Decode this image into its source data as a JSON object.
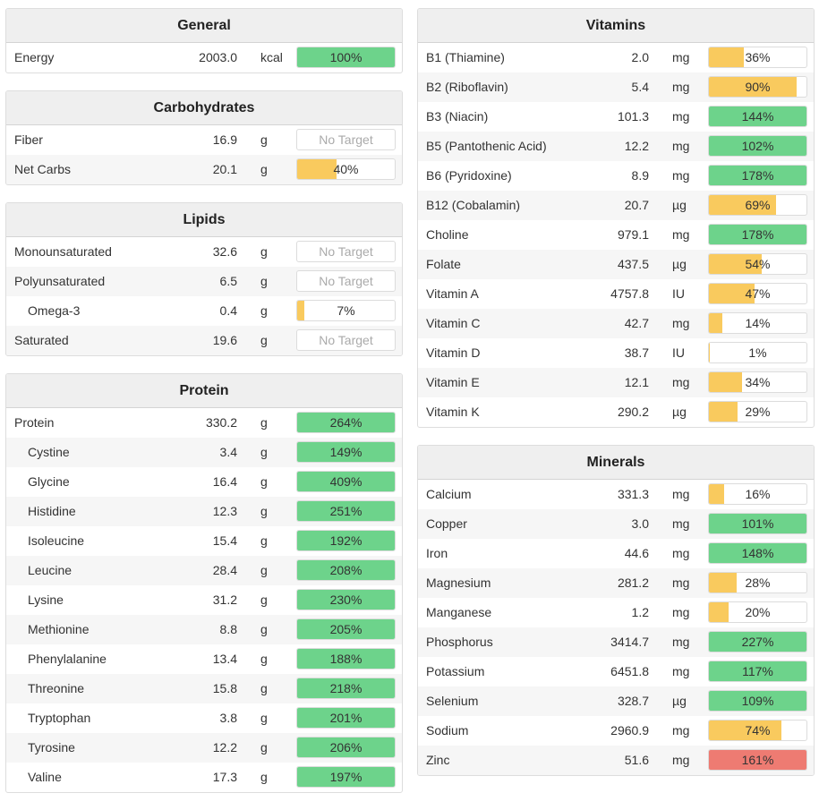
{
  "colors": {
    "green": "#6dd38b",
    "yellow": "#f9ca5e",
    "red": "#ee7b72"
  },
  "left_panels": [
    {
      "title": "General",
      "rows": [
        {
          "name": "Energy",
          "amount": "2003.0",
          "unit": "kcal",
          "percent": "100%",
          "fill": 1.0,
          "status": "green"
        }
      ]
    },
    {
      "title": "Carbohydrates",
      "rows": [
        {
          "name": "Fiber",
          "amount": "16.9",
          "unit": "g",
          "percent": "No Target",
          "fill": 0,
          "status": "none"
        },
        {
          "name": "Net Carbs",
          "amount": "20.1",
          "unit": "g",
          "percent": "40%",
          "fill": 0.4,
          "status": "yellow"
        }
      ]
    },
    {
      "title": "Lipids",
      "rows": [
        {
          "name": "Monounsaturated",
          "amount": "32.6",
          "unit": "g",
          "percent": "No Target",
          "fill": 0,
          "status": "none"
        },
        {
          "name": "Polyunsaturated",
          "amount": "6.5",
          "unit": "g",
          "percent": "No Target",
          "fill": 0,
          "status": "none"
        },
        {
          "name": "Omega-3",
          "amount": "0.4",
          "unit": "g",
          "percent": "7%",
          "fill": 0.07,
          "status": "yellow",
          "indent": true
        },
        {
          "name": "Saturated",
          "amount": "19.6",
          "unit": "g",
          "percent": "No Target",
          "fill": 0,
          "status": "none"
        }
      ]
    },
    {
      "title": "Protein",
      "rows": [
        {
          "name": "Protein",
          "amount": "330.2",
          "unit": "g",
          "percent": "264%",
          "fill": 1.0,
          "status": "green"
        },
        {
          "name": "Cystine",
          "amount": "3.4",
          "unit": "g",
          "percent": "149%",
          "fill": 1.0,
          "status": "green",
          "indent": true
        },
        {
          "name": "Glycine",
          "amount": "16.4",
          "unit": "g",
          "percent": "409%",
          "fill": 1.0,
          "status": "green",
          "indent": true
        },
        {
          "name": "Histidine",
          "amount": "12.3",
          "unit": "g",
          "percent": "251%",
          "fill": 1.0,
          "status": "green",
          "indent": true
        },
        {
          "name": "Isoleucine",
          "amount": "15.4",
          "unit": "g",
          "percent": "192%",
          "fill": 1.0,
          "status": "green",
          "indent": true
        },
        {
          "name": "Leucine",
          "amount": "28.4",
          "unit": "g",
          "percent": "208%",
          "fill": 1.0,
          "status": "green",
          "indent": true
        },
        {
          "name": "Lysine",
          "amount": "31.2",
          "unit": "g",
          "percent": "230%",
          "fill": 1.0,
          "status": "green",
          "indent": true
        },
        {
          "name": "Methionine",
          "amount": "8.8",
          "unit": "g",
          "percent": "205%",
          "fill": 1.0,
          "status": "green",
          "indent": true
        },
        {
          "name": "Phenylalanine",
          "amount": "13.4",
          "unit": "g",
          "percent": "188%",
          "fill": 1.0,
          "status": "green",
          "indent": true
        },
        {
          "name": "Threonine",
          "amount": "15.8",
          "unit": "g",
          "percent": "218%",
          "fill": 1.0,
          "status": "green",
          "indent": true
        },
        {
          "name": "Tryptophan",
          "amount": "3.8",
          "unit": "g",
          "percent": "201%",
          "fill": 1.0,
          "status": "green",
          "indent": true
        },
        {
          "name": "Tyrosine",
          "amount": "12.2",
          "unit": "g",
          "percent": "206%",
          "fill": 1.0,
          "status": "green",
          "indent": true
        },
        {
          "name": "Valine",
          "amount": "17.3",
          "unit": "g",
          "percent": "197%",
          "fill": 1.0,
          "status": "green",
          "indent": true
        }
      ]
    }
  ],
  "right_panels": [
    {
      "title": "Vitamins",
      "rows": [
        {
          "name": "B1 (Thiamine)",
          "amount": "2.0",
          "unit": "mg",
          "percent": "36%",
          "fill": 0.36,
          "status": "yellow"
        },
        {
          "name": "B2 (Riboflavin)",
          "amount": "5.4",
          "unit": "mg",
          "percent": "90%",
          "fill": 0.9,
          "status": "yellow"
        },
        {
          "name": "B3 (Niacin)",
          "amount": "101.3",
          "unit": "mg",
          "percent": "144%",
          "fill": 1.0,
          "status": "green"
        },
        {
          "name": "B5 (Pantothenic Acid)",
          "amount": "12.2",
          "unit": "mg",
          "percent": "102%",
          "fill": 1.0,
          "status": "green"
        },
        {
          "name": "B6 (Pyridoxine)",
          "amount": "8.9",
          "unit": "mg",
          "percent": "178%",
          "fill": 1.0,
          "status": "green"
        },
        {
          "name": "B12 (Cobalamin)",
          "amount": "20.7",
          "unit": "µg",
          "percent": "69%",
          "fill": 0.69,
          "status": "yellow"
        },
        {
          "name": "Choline",
          "amount": "979.1",
          "unit": "mg",
          "percent": "178%",
          "fill": 1.0,
          "status": "green"
        },
        {
          "name": "Folate",
          "amount": "437.5",
          "unit": "µg",
          "percent": "54%",
          "fill": 0.54,
          "status": "yellow"
        },
        {
          "name": "Vitamin A",
          "amount": "4757.8",
          "unit": "IU",
          "percent": "47%",
          "fill": 0.47,
          "status": "yellow"
        },
        {
          "name": "Vitamin C",
          "amount": "42.7",
          "unit": "mg",
          "percent": "14%",
          "fill": 0.14,
          "status": "yellow"
        },
        {
          "name": "Vitamin D",
          "amount": "38.7",
          "unit": "IU",
          "percent": "1%",
          "fill": 0.01,
          "status": "yellow"
        },
        {
          "name": "Vitamin E",
          "amount": "12.1",
          "unit": "mg",
          "percent": "34%",
          "fill": 0.34,
          "status": "yellow"
        },
        {
          "name": "Vitamin K",
          "amount": "290.2",
          "unit": "µg",
          "percent": "29%",
          "fill": 0.29,
          "status": "yellow"
        }
      ]
    },
    {
      "title": "Minerals",
      "rows": [
        {
          "name": "Calcium",
          "amount": "331.3",
          "unit": "mg",
          "percent": "16%",
          "fill": 0.16,
          "status": "yellow"
        },
        {
          "name": "Copper",
          "amount": "3.0",
          "unit": "mg",
          "percent": "101%",
          "fill": 1.0,
          "status": "green"
        },
        {
          "name": "Iron",
          "amount": "44.6",
          "unit": "mg",
          "percent": "148%",
          "fill": 1.0,
          "status": "green"
        },
        {
          "name": "Magnesium",
          "amount": "281.2",
          "unit": "mg",
          "percent": "28%",
          "fill": 0.28,
          "status": "yellow"
        },
        {
          "name": "Manganese",
          "amount": "1.2",
          "unit": "mg",
          "percent": "20%",
          "fill": 0.2,
          "status": "yellow"
        },
        {
          "name": "Phosphorus",
          "amount": "3414.7",
          "unit": "mg",
          "percent": "227%",
          "fill": 1.0,
          "status": "green"
        },
        {
          "name": "Potassium",
          "amount": "6451.8",
          "unit": "mg",
          "percent": "117%",
          "fill": 1.0,
          "status": "green"
        },
        {
          "name": "Selenium",
          "amount": "328.7",
          "unit": "µg",
          "percent": "109%",
          "fill": 1.0,
          "status": "green"
        },
        {
          "name": "Sodium",
          "amount": "2960.9",
          "unit": "mg",
          "percent": "74%",
          "fill": 0.74,
          "status": "yellow"
        },
        {
          "name": "Zinc",
          "amount": "51.6",
          "unit": "mg",
          "percent": "161%",
          "fill": 1.0,
          "status": "red"
        }
      ]
    }
  ]
}
